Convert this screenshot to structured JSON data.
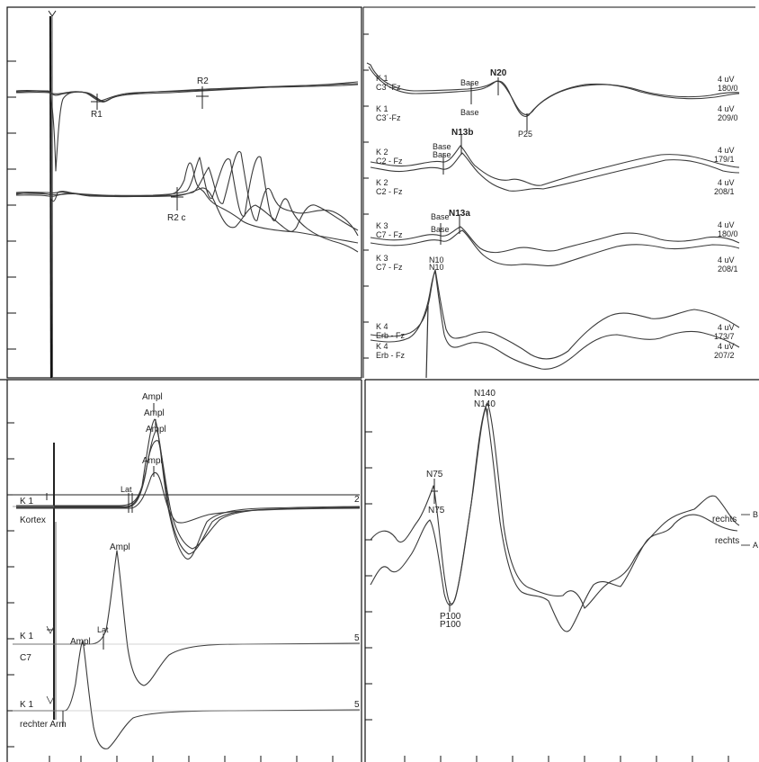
{
  "chart_data": [
    {
      "type": "line",
      "panel": "top-left",
      "labels": [
        "R1",
        "R2",
        "R2 c"
      ],
      "series": [
        {
          "x": [
            0,
            5,
            10,
            15,
            20,
            30,
            40,
            50,
            60,
            70,
            80,
            90,
            100
          ],
          "y": [
            1.0,
            0.5,
            0.97,
            0.98,
            1.0,
            1.0,
            1.02,
            1.04,
            1.05,
            1.06,
            1.07,
            1.08,
            1.1
          ]
        },
        {
          "x": [
            0,
            5,
            10,
            15,
            20,
            30,
            40,
            50,
            60,
            70,
            80,
            90,
            100
          ],
          "y": [
            0,
            0.3,
            0.0,
            0.0,
            0.0,
            0.0,
            -0.02,
            0.1,
            0.4,
            0.3,
            -0.2,
            -0.3,
            -0.45
          ]
        }
      ]
    },
    {
      "type": "line",
      "panel": "top-right",
      "labels": [
        "Base",
        "N20",
        "P25",
        "N13b",
        "N13a",
        "N10"
      ],
      "channel_labels": [
        {
          "k": "K 1",
          "lead": "C3´-Fz",
          "scale": "4 uV",
          "count": "180/0"
        },
        {
          "k": "K 1",
          "lead": "C3´-Fz",
          "scale": "4 uV",
          "count": "209/0"
        },
        {
          "k": "K 2",
          "lead": "C2 - Fz",
          "scale": "4 uV",
          "count": "179/1"
        },
        {
          "k": "K 2",
          "lead": "C2 - Fz",
          "scale": "4 uV",
          "count": "208/1"
        },
        {
          "k": "K 3",
          "lead": "C7 - Fz",
          "scale": "4 uV",
          "count": "180/0"
        },
        {
          "k": "K 3",
          "lead": "C7 - Fz",
          "scale": "4 uV",
          "count": "208/1"
        },
        {
          "k": "K 4",
          "lead": "Erb - Fz",
          "scale": "4 uV",
          "count": "173/7"
        },
        {
          "k": "K 4",
          "lead": "Erb - Fz",
          "scale": "4 uV",
          "count": "207/2"
        }
      ]
    },
    {
      "type": "line",
      "panel": "bottom-left",
      "labels": [
        "Ampl",
        "Ampl",
        "Ampl",
        "Ampl",
        "Lat",
        "Ampl",
        "Lat",
        "Ampl"
      ],
      "channel_labels": [
        "K 1",
        "Kortex",
        "K 1",
        "C7",
        "K 1",
        "rechter Arm"
      ],
      "right_labels": [
        "2",
        "5",
        "5"
      ]
    },
    {
      "type": "line",
      "panel": "bottom-right",
      "labels": [
        "N75",
        "N75",
        "N140",
        "N140",
        "P100",
        "P100",
        "rechts",
        "rechts"
      ],
      "right_labels": [
        "B",
        "A"
      ]
    }
  ]
}
